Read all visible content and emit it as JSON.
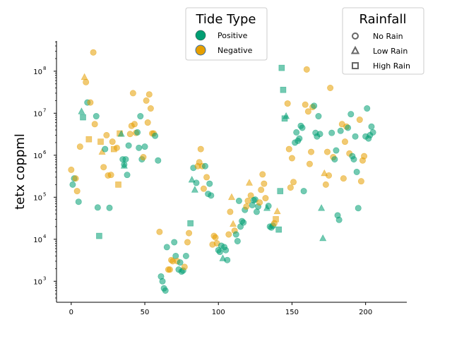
{
  "chart_data": {
    "type": "scatter",
    "title": "",
    "xlabel": "",
    "ylabel": "tetx coppml",
    "xlim": [
      -10,
      228
    ],
    "ylim_log10": [
      2.5,
      8.72
    ],
    "yscale": "log",
    "xticks": [
      0,
      50,
      100,
      150,
      200
    ],
    "xtick_labels": [
      "0",
      "50",
      "100",
      "150",
      "200"
    ],
    "yticks": [
      1000,
      10000,
      100000,
      1000000,
      10000000,
      100000000
    ],
    "ytick_labels_base": [
      "10",
      "10",
      "10",
      "10",
      "10",
      "10"
    ],
    "ytick_labels_exp": [
      "3",
      "4",
      "5",
      "6",
      "7",
      "8"
    ],
    "grid": false,
    "colors": {
      "Positive": "#009E73",
      "Negative": "#E69F00"
    },
    "legends": [
      {
        "title": "Tide Type",
        "placement": "top-center",
        "entries": [
          {
            "label": "Positive",
            "marker": "circle",
            "color": "#009E73"
          },
          {
            "label": "Negative",
            "marker": "circle",
            "color": "#E69F00"
          }
        ]
      },
      {
        "title": "Rainfall",
        "placement": "top-right",
        "entries": [
          {
            "label": "No Rain",
            "marker": "circle"
          },
          {
            "label": "Low Rain",
            "marker": "triangle"
          },
          {
            "label": "High Rain",
            "marker": "square"
          }
        ]
      }
    ],
    "points": [
      [
        0,
        450000,
        "Negative",
        "No Rain"
      ],
      [
        1,
        200000,
        "Positive",
        "No Rain"
      ],
      [
        2,
        280000,
        "Positive",
        "No Rain"
      ],
      [
        3,
        280000,
        "Negative",
        "No Rain"
      ],
      [
        4,
        140000,
        "Negative",
        "No Rain"
      ],
      [
        5,
        78000,
        "Positive",
        "No Rain"
      ],
      [
        6,
        1600000,
        "Negative",
        "No Rain"
      ],
      [
        7,
        11000000,
        "Positive",
        "Low Rain"
      ],
      [
        8,
        8000000,
        "Positive",
        "High Rain"
      ],
      [
        9,
        72000000,
        "Negative",
        "Low Rain"
      ],
      [
        10,
        55000000,
        "Negative",
        "No Rain"
      ],
      [
        11,
        18000000,
        "Positive",
        "No Rain"
      ],
      [
        12,
        2400000,
        "Negative",
        "High Rain"
      ],
      [
        13,
        18000000,
        "Negative",
        "No Rain"
      ],
      [
        15,
        280000000,
        "Negative",
        "No Rain"
      ],
      [
        16,
        5500000,
        "Negative",
        "No Rain"
      ],
      [
        17,
        8500000,
        "Positive",
        "No Rain"
      ],
      [
        18,
        57000,
        "Positive",
        "No Rain"
      ],
      [
        19,
        12000,
        "Positive",
        "High Rain"
      ],
      [
        20,
        2100000,
        "Negative",
        "High Rain"
      ],
      [
        21,
        1200000,
        "Negative",
        "Low Rain"
      ],
      [
        22,
        520000,
        "Negative",
        "No Rain"
      ],
      [
        23,
        1400000,
        "Positive",
        "No Rain"
      ],
      [
        24,
        3000000,
        "Negative",
        "No Rain"
      ],
      [
        25,
        330000,
        "Negative",
        "No Rain"
      ],
      [
        26,
        56000,
        "Positive",
        "No Rain"
      ],
      [
        27,
        340000,
        "Negative",
        "No Rain"
      ],
      [
        28,
        2100000,
        "Negative",
        "No Rain"
      ],
      [
        29,
        1400000,
        "Negative",
        "High Rain"
      ],
      [
        31,
        1500000,
        "Negative",
        "No Rain"
      ],
      [
        32,
        200000,
        "Negative",
        "High Rain"
      ],
      [
        33,
        3300000,
        "Negative",
        "High Rain"
      ],
      [
        34,
        3200000,
        "Positive",
        "Low Rain"
      ],
      [
        35,
        800000,
        "Positive",
        "No Rain"
      ],
      [
        36,
        600000,
        "Positive",
        "No Rain"
      ],
      [
        36,
        560000,
        "Positive",
        "Low Rain"
      ],
      [
        37,
        800000,
        "Positive",
        "No Rain"
      ],
      [
        38,
        340000,
        "Positive",
        "No Rain"
      ],
      [
        39,
        1700000,
        "Positive",
        "No Rain"
      ],
      [
        40,
        3200000,
        "Negative",
        "No Rain"
      ],
      [
        41,
        5000000,
        "Negative",
        "No Rain"
      ],
      [
        42,
        30000000,
        "Negative",
        "No Rain"
      ],
      [
        43,
        5500000,
        "Negative",
        "No Rain"
      ],
      [
        44,
        3400000,
        "Negative",
        "No Rain"
      ],
      [
        45,
        3500000,
        "Positive",
        "No Rain"
      ],
      [
        46,
        1500000,
        "Positive",
        "No Rain"
      ],
      [
        47,
        8500000,
        "Positive",
        "No Rain"
      ],
      [
        48,
        800000,
        "Positive",
        "No Rain"
      ],
      [
        49,
        900000,
        "Negative",
        "No Rain"
      ],
      [
        50,
        1600000,
        "Positive",
        "No Rain"
      ],
      [
        51,
        20000000,
        "Negative",
        "No Rain"
      ],
      [
        52,
        6000000,
        "Negative",
        "No Rain"
      ],
      [
        53,
        28000000,
        "Negative",
        "No Rain"
      ],
      [
        54,
        13000000,
        "Negative",
        "No Rain"
      ],
      [
        55,
        3300000,
        "Negative",
        "No Rain"
      ],
      [
        56,
        3300000,
        "Negative",
        "No Rain"
      ],
      [
        57,
        2900000,
        "Positive",
        "No Rain"
      ],
      [
        59,
        750000,
        "Positive",
        "No Rain"
      ],
      [
        60,
        15000,
        "Negative",
        "No Rain"
      ],
      [
        61,
        1300,
        "Positive",
        "No Rain"
      ],
      [
        62,
        1000,
        "Positive",
        "No Rain"
      ],
      [
        63,
        680,
        "Positive",
        "No Rain"
      ],
      [
        64,
        600,
        "Positive",
        "No Rain"
      ],
      [
        65,
        6500,
        "Positive",
        "No Rain"
      ],
      [
        66,
        1900,
        "Negative",
        "No Rain"
      ],
      [
        67,
        1900,
        "Negative",
        "No Rain"
      ],
      [
        68,
        3200,
        "Negative",
        "No Rain"
      ],
      [
        69,
        3000,
        "Negative",
        "No Rain"
      ],
      [
        70,
        8500,
        "Positive",
        "No Rain"
      ],
      [
        71,
        4000,
        "Positive",
        "No Rain"
      ],
      [
        72,
        3000,
        "Negative",
        "No Rain"
      ],
      [
        73,
        1900,
        "Positive",
        "No Rain"
      ],
      [
        74,
        2800,
        "Positive",
        "No Rain"
      ],
      [
        75,
        1700,
        "Positive",
        "No Rain"
      ],
      [
        76,
        1800,
        "Positive",
        "No Rain"
      ],
      [
        77,
        2200,
        "Negative",
        "No Rain"
      ],
      [
        78,
        4000,
        "Positive",
        "No Rain"
      ],
      [
        79,
        8500,
        "Negative",
        "No Rain"
      ],
      [
        80,
        14000,
        "Negative",
        "No Rain"
      ],
      [
        81,
        24000,
        "Positive",
        "High Rain"
      ],
      [
        82,
        260000,
        "Positive",
        "Low Rain"
      ],
      [
        83,
        500000,
        "Positive",
        "No Rain"
      ],
      [
        84,
        150000,
        "Positive",
        "Low Rain"
      ],
      [
        85,
        220000,
        "Positive",
        "No Rain"
      ],
      [
        86,
        550000,
        "Negative",
        "No Rain"
      ],
      [
        87,
        680000,
        "Negative",
        "No Rain"
      ],
      [
        88,
        1400000,
        "Negative",
        "No Rain"
      ],
      [
        89,
        550000,
        "Negative",
        "No Rain"
      ],
      [
        90,
        160000,
        "Negative",
        "No Rain"
      ],
      [
        91,
        550000,
        "Positive",
        "No Rain"
      ],
      [
        92,
        300000,
        "Negative",
        "No Rain"
      ],
      [
        93,
        120000,
        "Positive",
        "No Rain"
      ],
      [
        94,
        210000,
        "Positive",
        "No Rain"
      ],
      [
        95,
        110000,
        "Positive",
        "No Rain"
      ],
      [
        96,
        7500,
        "Negative",
        "No Rain"
      ],
      [
        97,
        12000,
        "Negative",
        "No Rain"
      ],
      [
        98,
        11000,
        "Negative",
        "No Rain"
      ],
      [
        99,
        8000,
        "Negative",
        "No Rain"
      ],
      [
        100,
        5500,
        "Positive",
        "No Rain"
      ],
      [
        101,
        5000,
        "Positive",
        "No Rain"
      ],
      [
        102,
        7000,
        "Positive",
        "No Rain"
      ],
      [
        103,
        3500,
        "Positive",
        "Low Rain"
      ],
      [
        104,
        6500,
        "Positive",
        "No Rain"
      ],
      [
        105,
        5500,
        "Positive",
        "No Rain"
      ],
      [
        106,
        3200,
        "Positive",
        "No Rain"
      ],
      [
        107,
        13000,
        "Negative",
        "No Rain"
      ],
      [
        108,
        45000,
        "Negative",
        "No Rain"
      ],
      [
        109,
        100000,
        "Negative",
        "Low Rain"
      ],
      [
        110,
        23000,
        "Negative",
        "Low Rain"
      ],
      [
        111,
        16000,
        "Negative",
        "No Rain"
      ],
      [
        112,
        13000,
        "Positive",
        "No Rain"
      ],
      [
        113,
        9000,
        "Positive",
        "No Rain"
      ],
      [
        114,
        82000,
        "Positive",
        "No Rain"
      ],
      [
        115,
        20000,
        "Positive",
        "No Rain"
      ],
      [
        116,
        27000,
        "Positive",
        "No Rain"
      ],
      [
        117,
        25000,
        "Positive",
        "No Rain"
      ],
      [
        118,
        50000,
        "Positive",
        "No Rain"
      ],
      [
        119,
        60000,
        "Negative",
        "No Rain"
      ],
      [
        120,
        82000,
        "Negative",
        "No Rain"
      ],
      [
        121,
        220000,
        "Negative",
        "Low Rain"
      ],
      [
        122,
        110000,
        "Negative",
        "No Rain"
      ],
      [
        123,
        65000,
        "Positive",
        "No Rain"
      ],
      [
        124,
        85000,
        "Positive",
        "No Rain"
      ],
      [
        125,
        88000,
        "Positive",
        "No Rain"
      ],
      [
        126,
        45000,
        "Positive",
        "No Rain"
      ],
      [
        127,
        60000,
        "Positive",
        "No Rain"
      ],
      [
        128,
        75000,
        "Negative",
        "No Rain"
      ],
      [
        129,
        150000,
        "Negative",
        "No Rain"
      ],
      [
        130,
        350000,
        "Negative",
        "No Rain"
      ],
      [
        131,
        210000,
        "Negative",
        "No Rain"
      ],
      [
        132,
        95000,
        "Negative",
        "No Rain"
      ],
      [
        133,
        55000,
        "Positive",
        "Low Rain"
      ],
      [
        134,
        62000,
        "Positive",
        "No Rain"
      ],
      [
        135,
        20000,
        "Positive",
        "No Rain"
      ],
      [
        136,
        19000,
        "Positive",
        "No Rain"
      ],
      [
        137,
        21000,
        "Positive",
        "No Rain"
      ],
      [
        138,
        24000,
        "Negative",
        "No Rain"
      ],
      [
        139,
        30000,
        "Negative",
        "High Rain"
      ],
      [
        140,
        46000,
        "Negative",
        "Low Rain"
      ],
      [
        141,
        17000,
        "Positive",
        "High Rain"
      ],
      [
        142,
        140000,
        "Positive",
        "High Rain"
      ],
      [
        143,
        120000000,
        "Positive",
        "High Rain"
      ],
      [
        144,
        36000000,
        "Positive",
        "High Rain"
      ],
      [
        145,
        7500000,
        "Positive",
        "High Rain"
      ],
      [
        146,
        8500000,
        "Positive",
        "Low Rain"
      ],
      [
        147,
        17000000,
        "Negative",
        "No Rain"
      ],
      [
        148,
        1400000,
        "Negative",
        "No Rain"
      ],
      [
        149,
        170000,
        "Negative",
        "No Rain"
      ],
      [
        150,
        850000,
        "Negative",
        "No Rain"
      ],
      [
        151,
        230000,
        "Negative",
        "No Rain"
      ],
      [
        152,
        2000000,
        "Positive",
        "No Rain"
      ],
      [
        153,
        3500000,
        "Positive",
        "No Rain"
      ],
      [
        154,
        2200000,
        "Positive",
        "No Rain"
      ],
      [
        155,
        2500000,
        "Positive",
        "No Rain"
      ],
      [
        156,
        5000000,
        "Positive",
        "No Rain"
      ],
      [
        157,
        4500000,
        "Positive",
        "No Rain"
      ],
      [
        158,
        140000,
        "Positive",
        "No Rain"
      ],
      [
        159,
        16000000,
        "Negative",
        "No Rain"
      ],
      [
        160,
        110000000,
        "Negative",
        "No Rain"
      ],
      [
        161,
        11000000,
        "Negative",
        "No Rain"
      ],
      [
        162,
        620000,
        "Negative",
        "No Rain"
      ],
      [
        163,
        1200000,
        "Negative",
        "No Rain"
      ],
      [
        164,
        14000000,
        "Negative",
        "No Rain"
      ],
      [
        165,
        15000000,
        "Positive",
        "No Rain"
      ],
      [
        166,
        3400000,
        "Positive",
        "No Rain"
      ],
      [
        167,
        2800000,
        "Positive",
        "No Rain"
      ],
      [
        168,
        8500000,
        "Positive",
        "No Rain"
      ],
      [
        169,
        3200000,
        "Positive",
        "No Rain"
      ],
      [
        170,
        55000,
        "Positive",
        "Low Rain"
      ],
      [
        171,
        10500,
        "Positive",
        "Low Rain"
      ],
      [
        172,
        370000,
        "Negative",
        "Low Rain"
      ],
      [
        173,
        200000,
        "Negative",
        "No Rain"
      ],
      [
        174,
        1200000,
        "Negative",
        "No Rain"
      ],
      [
        175,
        330000,
        "Negative",
        "No Rain"
      ],
      [
        176,
        40000000,
        "Negative",
        "No Rain"
      ],
      [
        177,
        3400000,
        "Positive",
        "No Rain"
      ],
      [
        178,
        900000,
        "Negative",
        "No Rain"
      ],
      [
        179,
        800000,
        "Positive",
        "No Rain"
      ],
      [
        180,
        1300000,
        "Positive",
        "No Rain"
      ],
      [
        181,
        37000,
        "Positive",
        "No Rain"
      ],
      [
        182,
        29000,
        "Positive",
        "No Rain"
      ],
      [
        183,
        3800000,
        "Positive",
        "No Rain"
      ],
      [
        184,
        5500000,
        "Negative",
        "No Rain"
      ],
      [
        185,
        280000,
        "Negative",
        "No Rain"
      ],
      [
        186,
        2100000,
        "Negative",
        "No Rain"
      ],
      [
        187,
        4800000,
        "Negative",
        "No Rain"
      ],
      [
        188,
        4500000,
        "Positive",
        "No Rain"
      ],
      [
        189,
        1100000,
        "Negative",
        "No Rain"
      ],
      [
        190,
        9500000,
        "Positive",
        "No Rain"
      ],
      [
        191,
        950000,
        "Positive",
        "No Rain"
      ],
      [
        192,
        800000,
        "Positive",
        "No Rain"
      ],
      [
        193,
        2800000,
        "Positive",
        "No Rain"
      ],
      [
        194,
        400000,
        "Positive",
        "No Rain"
      ],
      [
        195,
        55000,
        "Positive",
        "No Rain"
      ],
      [
        196,
        7000000,
        "Negative",
        "No Rain"
      ],
      [
        197,
        240000,
        "Negative",
        "No Rain"
      ],
      [
        198,
        750000,
        "Negative",
        "No Rain"
      ],
      [
        199,
        950000,
        "Negative",
        "No Rain"
      ],
      [
        200,
        2800000,
        "Positive",
        "No Rain"
      ],
      [
        201,
        13000000,
        "Positive",
        "No Rain"
      ],
      [
        202,
        2500000,
        "Positive",
        "No Rain"
      ],
      [
        203,
        3000000,
        "Positive",
        "No Rain"
      ],
      [
        204,
        4800000,
        "Positive",
        "No Rain"
      ],
      [
        205,
        3500000,
        "Positive",
        "No Rain"
      ]
    ]
  }
}
